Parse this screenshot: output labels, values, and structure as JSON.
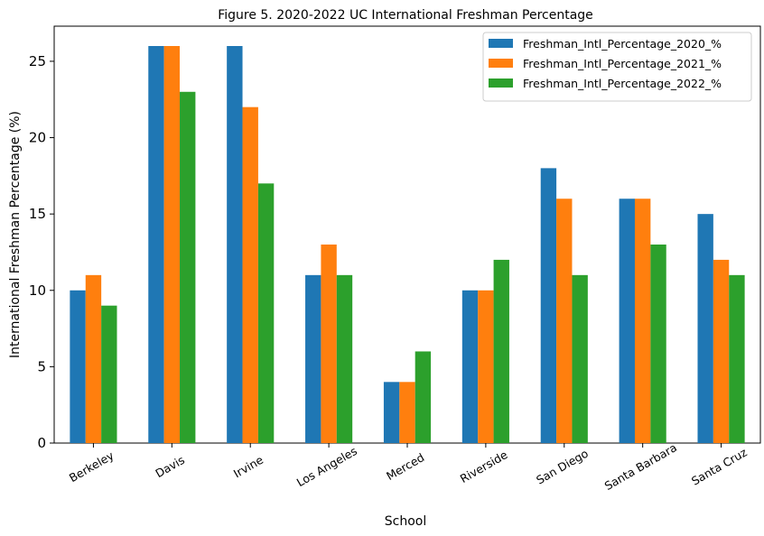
{
  "chart_data": {
    "type": "bar",
    "title": "Figure 5. 2020-2022 UC International Freshman Percentage",
    "xlabel": "School",
    "ylabel": "International Freshman Percentage (%)",
    "categories": [
      "Berkeley",
      "Davis",
      "Irvine",
      "Los Angeles",
      "Merced",
      "Riverside",
      "San Diego",
      "Santa Barbara",
      "Santa Cruz"
    ],
    "series": [
      {
        "name": "Freshman_Intl_Percentage_2020_%",
        "color": "#1f77b4",
        "values": [
          10,
          26,
          26,
          11,
          4,
          10,
          18,
          16,
          15
        ]
      },
      {
        "name": "Freshman_Intl_Percentage_2021_%",
        "color": "#ff7f0e",
        "values": [
          11,
          26,
          22,
          13,
          4,
          10,
          16,
          16,
          12
        ]
      },
      {
        "name": "Freshman_Intl_Percentage_2022_%",
        "color": "#2ca02c",
        "values": [
          9,
          23,
          17,
          11,
          6,
          12,
          11,
          13,
          11
        ]
      }
    ],
    "ylim": [
      0,
      27.3
    ],
    "yticks": [
      0,
      5,
      10,
      15,
      20,
      25
    ],
    "grid": false,
    "legend_position": "top-right"
  }
}
